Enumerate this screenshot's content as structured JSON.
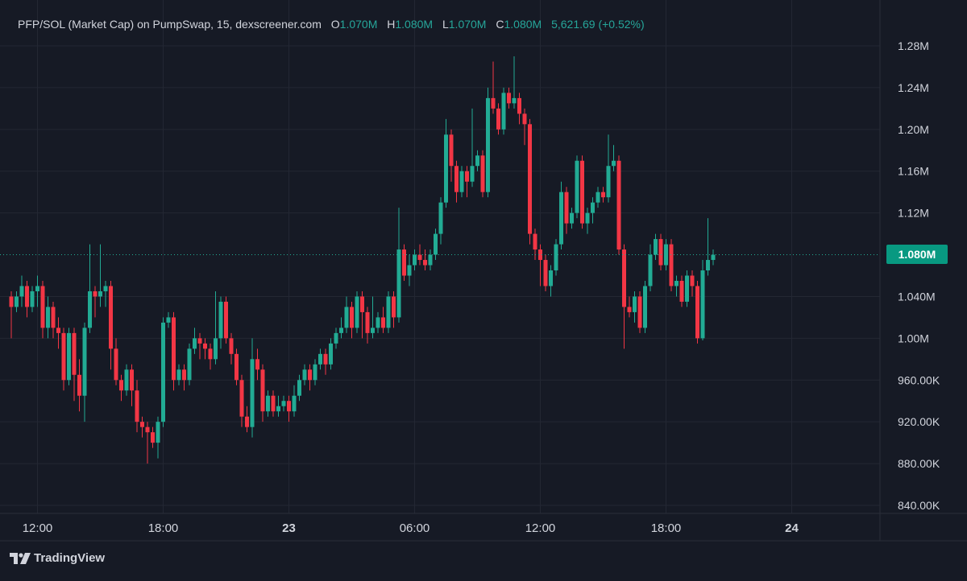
{
  "legend": {
    "symbol": "PFP/SOL (Market Cap) on PumpSwap, 15, dexscreener.com",
    "o_key": "O",
    "o_val": "1.070M",
    "h_key": "H",
    "h_val": "1.080M",
    "l_key": "L",
    "l_val": "1.070M",
    "c_key": "C",
    "c_val": "1.080M",
    "change": "5,621.69 (+0.52%)"
  },
  "last_price_label": "1.080M",
  "brand": {
    "name": "TradingView"
  },
  "icons": [
    "tradingview-logo-icon"
  ],
  "colors": {
    "background": "#161a25",
    "up": "#22ab94",
    "down": "#f23645",
    "grid": "#232733",
    "text": "#d1d4dc"
  },
  "chart_data": {
    "type": "candlestick",
    "title": "PFP/SOL (Market Cap) on PumpSwap, 15, dexscreener.com",
    "interval": "15",
    "ylim": [
      825000,
      1305000
    ],
    "y_ticks": [
      {
        "value": 1280000,
        "label": "1.28M"
      },
      {
        "value": 1240000,
        "label": "1.24M"
      },
      {
        "value": 1200000,
        "label": "1.20M"
      },
      {
        "value": 1160000,
        "label": "1.16M"
      },
      {
        "value": 1120000,
        "label": "1.12M"
      },
      {
        "value": 1040000,
        "label": "1.040M"
      },
      {
        "value": 1000000,
        "label": "1.00M"
      },
      {
        "value": 960000,
        "label": "960.00K"
      },
      {
        "value": 920000,
        "label": "920.00K"
      },
      {
        "value": 880000,
        "label": "880.00K"
      },
      {
        "value": 840000,
        "label": "840.00K"
      }
    ],
    "x_ticks": [
      {
        "index": 5,
        "label": "12:00"
      },
      {
        "index": 29,
        "label": "18:00"
      },
      {
        "index": 53,
        "label": "23"
      },
      {
        "index": 77,
        "label": "06:00"
      },
      {
        "index": 101,
        "label": "12:00"
      },
      {
        "index": 125,
        "label": "18:00"
      },
      {
        "index": 149,
        "label": "24"
      }
    ],
    "last_price": 1080000,
    "grid": true,
    "candles": [
      [
        1040000,
        1030000,
        1045000,
        1000000
      ],
      [
        1030000,
        1040000,
        1045000,
        1025000
      ],
      [
        1040000,
        1050000,
        1060000,
        1030000
      ],
      [
        1050000,
        1030000,
        1055000,
        1020000
      ],
      [
        1030000,
        1045000,
        1050000,
        1025000
      ],
      [
        1045000,
        1050000,
        1060000,
        1030000
      ],
      [
        1050000,
        1010000,
        1055000,
        1000000
      ],
      [
        1010000,
        1030000,
        1040000,
        1000000
      ],
      [
        1030000,
        1010000,
        1035000,
        1000000
      ],
      [
        1010000,
        1005000,
        1020000,
        990000
      ],
      [
        1005000,
        960000,
        1010000,
        950000
      ],
      [
        960000,
        1005000,
        1010000,
        955000
      ],
      [
        1005000,
        965000,
        1010000,
        940000
      ],
      [
        965000,
        945000,
        980000,
        930000
      ],
      [
        945000,
        1010000,
        1015000,
        920000
      ],
      [
        1010000,
        1045000,
        1090000,
        1005000
      ],
      [
        1045000,
        1040000,
        1050000,
        1020000
      ],
      [
        1040000,
        1045000,
        1090000,
        1030000
      ],
      [
        1045000,
        1050000,
        1055000,
        1030000
      ],
      [
        1050000,
        990000,
        1055000,
        970000
      ],
      [
        990000,
        960000,
        1000000,
        955000
      ],
      [
        960000,
        950000,
        965000,
        940000
      ],
      [
        950000,
        970000,
        975000,
        945000
      ],
      [
        970000,
        950000,
        975000,
        935000
      ],
      [
        950000,
        920000,
        960000,
        910000
      ],
      [
        920000,
        915000,
        925000,
        905000
      ],
      [
        915000,
        910000,
        920000,
        880000
      ],
      [
        910000,
        900000,
        915000,
        895000
      ],
      [
        900000,
        920000,
        925000,
        885000
      ],
      [
        920000,
        1015000,
        1020000,
        915000
      ],
      [
        1015000,
        1020000,
        1025000,
        1010000
      ],
      [
        1020000,
        960000,
        1025000,
        950000
      ],
      [
        960000,
        970000,
        975000,
        955000
      ],
      [
        970000,
        960000,
        975000,
        950000
      ],
      [
        960000,
        990000,
        995000,
        955000
      ],
      [
        990000,
        1000000,
        1010000,
        985000
      ],
      [
        1000000,
        995000,
        1005000,
        980000
      ],
      [
        995000,
        990000,
        1000000,
        980000
      ],
      [
        990000,
        980000,
        995000,
        970000
      ],
      [
        980000,
        1000000,
        1045000,
        975000
      ],
      [
        1000000,
        1035000,
        1040000,
        990000
      ],
      [
        1035000,
        1000000,
        1040000,
        995000
      ],
      [
        1000000,
        985000,
        1005000,
        975000
      ],
      [
        985000,
        960000,
        990000,
        955000
      ],
      [
        960000,
        925000,
        965000,
        915000
      ],
      [
        925000,
        915000,
        935000,
        910000
      ],
      [
        915000,
        980000,
        1000000,
        905000
      ],
      [
        980000,
        970000,
        990000,
        960000
      ],
      [
        970000,
        930000,
        975000,
        920000
      ],
      [
        930000,
        945000,
        950000,
        925000
      ],
      [
        945000,
        930000,
        950000,
        925000
      ],
      [
        930000,
        935000,
        945000,
        925000
      ],
      [
        935000,
        940000,
        945000,
        930000
      ],
      [
        940000,
        930000,
        945000,
        920000
      ],
      [
        930000,
        945000,
        955000,
        925000
      ],
      [
        945000,
        960000,
        965000,
        940000
      ],
      [
        960000,
        970000,
        975000,
        955000
      ],
      [
        970000,
        960000,
        975000,
        950000
      ],
      [
        960000,
        975000,
        980000,
        955000
      ],
      [
        975000,
        985000,
        990000,
        970000
      ],
      [
        985000,
        975000,
        990000,
        965000
      ],
      [
        975000,
        995000,
        1000000,
        970000
      ],
      [
        995000,
        1005000,
        1010000,
        990000
      ],
      [
        1005000,
        1010000,
        1020000,
        1000000
      ],
      [
        1010000,
        1030000,
        1040000,
        1005000
      ],
      [
        1030000,
        1010000,
        1035000,
        1000000
      ],
      [
        1010000,
        1040000,
        1045000,
        1005000
      ],
      [
        1040000,
        1025000,
        1045000,
        1000000
      ],
      [
        1025000,
        1005000,
        1030000,
        995000
      ],
      [
        1005000,
        1010000,
        1040000,
        1000000
      ],
      [
        1010000,
        1020000,
        1025000,
        1005000
      ],
      [
        1020000,
        1010000,
        1030000,
        1005000
      ],
      [
        1010000,
        1040000,
        1045000,
        1005000
      ],
      [
        1040000,
        1020000,
        1045000,
        1010000
      ],
      [
        1020000,
        1085000,
        1125000,
        1015000
      ],
      [
        1085000,
        1060000,
        1090000,
        1055000
      ],
      [
        1060000,
        1070000,
        1080000,
        1050000
      ],
      [
        1070000,
        1080000,
        1085000,
        1065000
      ],
      [
        1080000,
        1075000,
        1090000,
        1070000
      ],
      [
        1075000,
        1070000,
        1085000,
        1065000
      ],
      [
        1070000,
        1080000,
        1085000,
        1065000
      ],
      [
        1080000,
        1100000,
        1105000,
        1075000
      ],
      [
        1100000,
        1130000,
        1135000,
        1090000
      ],
      [
        1130000,
        1195000,
        1210000,
        1125000
      ],
      [
        1195000,
        1165000,
        1200000,
        1150000
      ],
      [
        1165000,
        1140000,
        1170000,
        1130000
      ],
      [
        1140000,
        1160000,
        1165000,
        1135000
      ],
      [
        1160000,
        1150000,
        1165000,
        1135000
      ],
      [
        1150000,
        1165000,
        1220000,
        1145000
      ],
      [
        1165000,
        1175000,
        1180000,
        1160000
      ],
      [
        1175000,
        1140000,
        1180000,
        1135000
      ],
      [
        1140000,
        1230000,
        1240000,
        1135000
      ],
      [
        1230000,
        1220000,
        1265000,
        1215000
      ],
      [
        1220000,
        1200000,
        1225000,
        1195000
      ],
      [
        1200000,
        1235000,
        1240000,
        1195000
      ],
      [
        1235000,
        1225000,
        1240000,
        1220000
      ],
      [
        1225000,
        1230000,
        1270000,
        1220000
      ],
      [
        1230000,
        1215000,
        1235000,
        1205000
      ],
      [
        1215000,
        1205000,
        1220000,
        1185000
      ],
      [
        1205000,
        1100000,
        1210000,
        1090000
      ],
      [
        1100000,
        1085000,
        1105000,
        1075000
      ],
      [
        1085000,
        1075000,
        1090000,
        1050000
      ],
      [
        1075000,
        1050000,
        1080000,
        1045000
      ],
      [
        1050000,
        1065000,
        1070000,
        1040000
      ],
      [
        1065000,
        1090000,
        1095000,
        1060000
      ],
      [
        1090000,
        1140000,
        1150000,
        1085000
      ],
      [
        1140000,
        1110000,
        1145000,
        1100000
      ],
      [
        1110000,
        1120000,
        1125000,
        1105000
      ],
      [
        1120000,
        1170000,
        1175000,
        1115000
      ],
      [
        1170000,
        1110000,
        1175000,
        1105000
      ],
      [
        1110000,
        1120000,
        1125000,
        1100000
      ],
      [
        1120000,
        1130000,
        1135000,
        1110000
      ],
      [
        1130000,
        1140000,
        1145000,
        1125000
      ],
      [
        1140000,
        1135000,
        1145000,
        1130000
      ],
      [
        1135000,
        1165000,
        1195000,
        1130000
      ],
      [
        1165000,
        1170000,
        1185000,
        1160000
      ],
      [
        1170000,
        1085000,
        1175000,
        1080000
      ],
      [
        1085000,
        1030000,
        1090000,
        990000
      ],
      [
        1030000,
        1025000,
        1040000,
        1020000
      ],
      [
        1025000,
        1040000,
        1045000,
        1015000
      ],
      [
        1040000,
        1010000,
        1045000,
        1005000
      ],
      [
        1010000,
        1050000,
        1055000,
        1005000
      ],
      [
        1050000,
        1080000,
        1090000,
        1045000
      ],
      [
        1080000,
        1095000,
        1100000,
        1075000
      ],
      [
        1095000,
        1070000,
        1100000,
        1065000
      ],
      [
        1070000,
        1090000,
        1095000,
        1065000
      ],
      [
        1090000,
        1050000,
        1095000,
        1045000
      ],
      [
        1050000,
        1055000,
        1060000,
        1040000
      ],
      [
        1055000,
        1035000,
        1060000,
        1030000
      ],
      [
        1035000,
        1060000,
        1065000,
        1030000
      ],
      [
        1060000,
        1050000,
        1065000,
        1040000
      ],
      [
        1050000,
        1000000,
        1055000,
        995000
      ],
      [
        1000000,
        1065000,
        1075000,
        998000
      ],
      [
        1065000,
        1075000,
        1115000,
        1060000
      ],
      [
        1075000,
        1080000,
        1085000,
        1070000
      ]
    ]
  }
}
